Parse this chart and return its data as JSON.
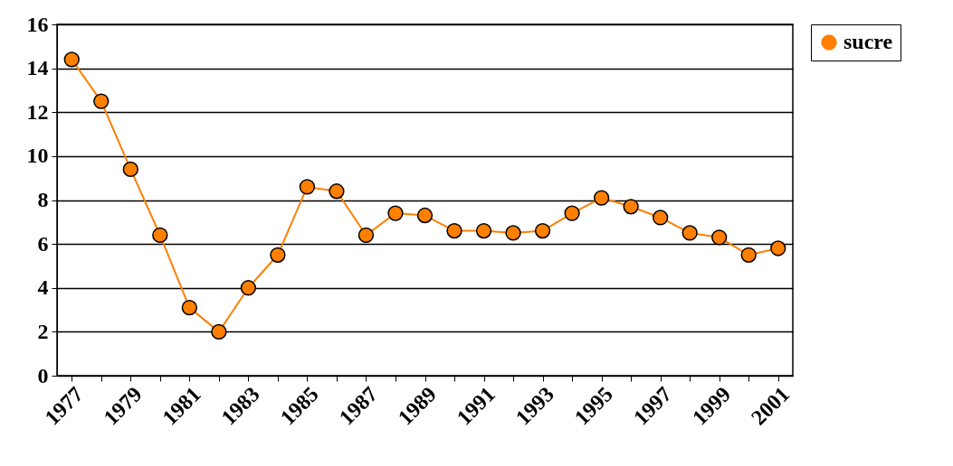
{
  "chart_data": {
    "type": "line",
    "categories": [
      "1977",
      null,
      "1979",
      null,
      "1981",
      null,
      "1983",
      null,
      "1985",
      null,
      "1987",
      null,
      "1989",
      null,
      "1991",
      null,
      "1993",
      null,
      "1995",
      null,
      "1997",
      null,
      "1999",
      null,
      "2001"
    ],
    "series": [
      {
        "name": "sucre",
        "color": "#ff7f00",
        "values": [
          14.4,
          12.5,
          9.4,
          6.4,
          3.1,
          2.0,
          4.0,
          5.5,
          8.6,
          8.4,
          6.4,
          7.4,
          7.3,
          6.6,
          6.6,
          6.5,
          6.6,
          7.4,
          8.1,
          7.7,
          7.2,
          6.5,
          6.3,
          5.5,
          5.8
        ]
      }
    ],
    "ylim": [
      0,
      16
    ],
    "yticks": [
      0,
      2,
      4,
      6,
      8,
      10,
      12,
      14,
      16
    ],
    "grid": "y",
    "legend": "right",
    "marker": "circle",
    "line_style": "solid"
  }
}
